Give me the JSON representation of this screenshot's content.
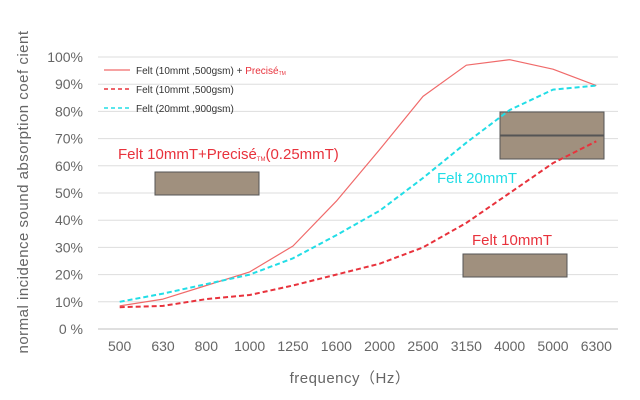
{
  "chart_data": {
    "type": "line",
    "title": "",
    "xlabel": "frequency（Hz）",
    "ylabel": "normal incidence sound absorption coef cient",
    "categories": [
      "500",
      "630",
      "800",
      "1000",
      "1250",
      "1600",
      "2000",
      "2500",
      "3150",
      "4000",
      "5000",
      "6300"
    ],
    "ylim": [
      0,
      100
    ],
    "y_ticks": [
      "0 %",
      "10%",
      "20%",
      "30%",
      "40%",
      "50%",
      "60%",
      "70%",
      "80%",
      "90%",
      "100%"
    ],
    "grid": "horizontal",
    "legend_position": "top-left",
    "legend": [
      {
        "text": "Felt (10mmt ,500gsm) + ",
        "brand": "Precisé",
        "tm": "TM"
      },
      {
        "text": "Felt (10mmt ,500gsm)"
      },
      {
        "text": "Felt (20mmt ,900gsm)"
      }
    ],
    "series": [
      {
        "color": "#f06a6a",
        "style": "solid",
        "values": [
          8.5,
          11,
          16,
          21,
          30.5,
          47,
          66,
          85.5,
          97,
          99,
          95.5,
          89.5
        ]
      },
      {
        "color": "#e8323c",
        "style": "dashed",
        "values": [
          8,
          8.5,
          11,
          12.5,
          16,
          20,
          24,
          30,
          39,
          50,
          61,
          69
        ]
      },
      {
        "color": "#22dde6",
        "style": "dashed",
        "values": [
          10,
          13,
          16.5,
          20,
          26,
          34.5,
          43.5,
          55.5,
          68.5,
          80.5,
          88,
          89.5
        ]
      }
    ],
    "annotations": [
      {
        "text": "Felt 10mmT+Precisé",
        "tm": "TM",
        "suffix": "(0.25mmT)",
        "color": "#e8323c"
      },
      {
        "text": "Felt 20mmT",
        "color": "#22dde6"
      },
      {
        "text": "Felt 10mmT",
        "color": "#e8323c"
      }
    ]
  }
}
